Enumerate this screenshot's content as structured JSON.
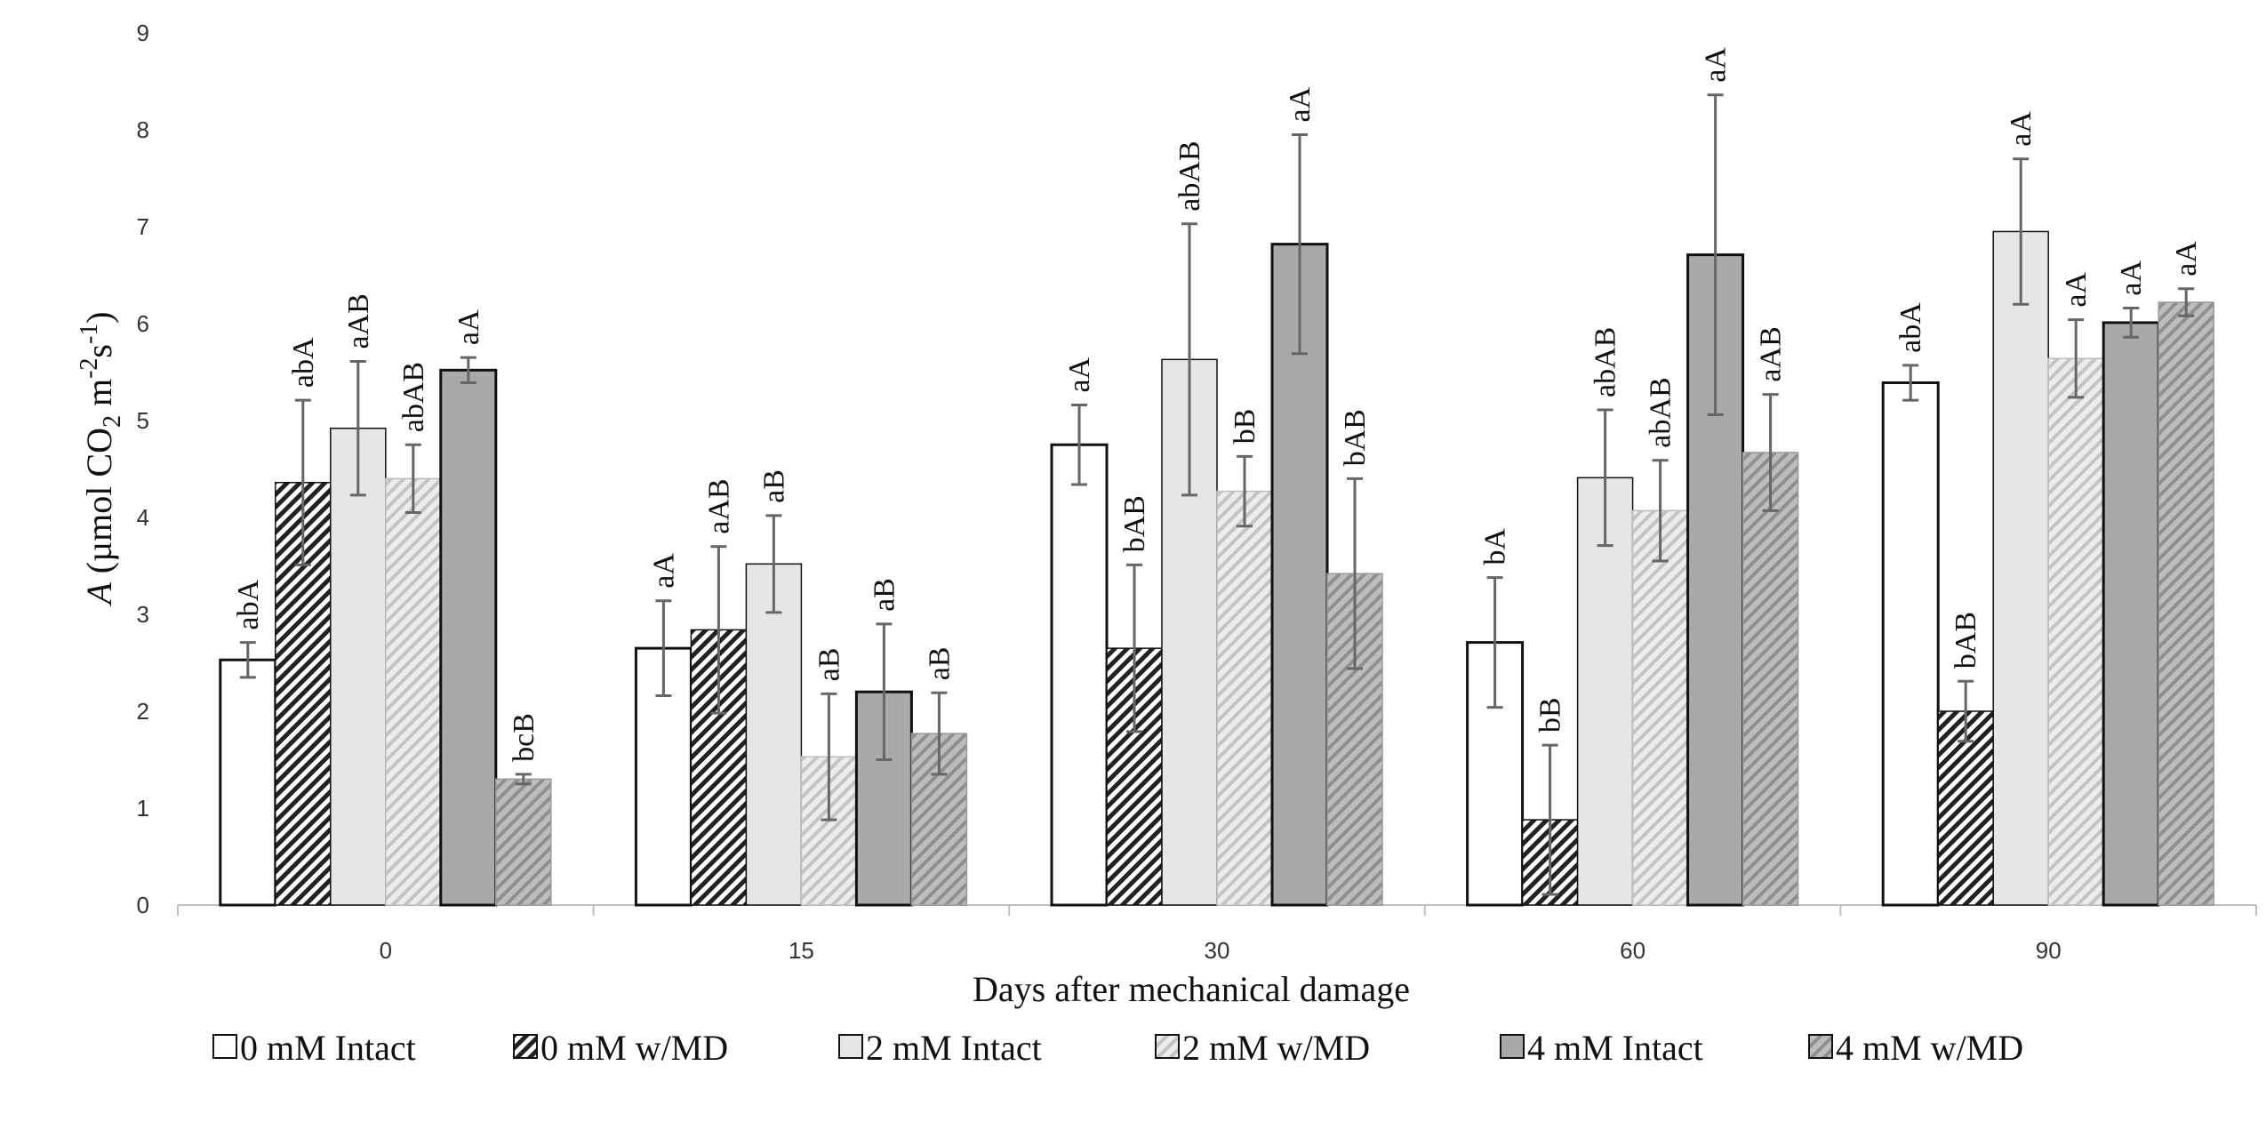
{
  "chart_data": {
    "type": "bar",
    "xlabel": "Days after mechanical damage",
    "ylabel": {
      "italic": "A",
      "pre": " (µmol CO",
      "sub": "2",
      "mid": " m",
      "sup1": "-2",
      "mid2": "s",
      "sup2": "-1",
      "post": ")"
    },
    "ylim": [
      0,
      9
    ],
    "yticks": [
      "0",
      "1",
      "2",
      "3",
      "4",
      "5",
      "6",
      "7",
      "8",
      "9"
    ],
    "categories": [
      "0",
      "15",
      "30",
      "60",
      "90"
    ],
    "legend_position": "bottom",
    "grid": false,
    "series": [
      {
        "name": "0 mM Intact",
        "style": "white",
        "values": [
          2.53,
          2.65,
          4.75,
          2.71,
          5.39
        ],
        "errors": [
          0.18,
          0.49,
          0.41,
          0.67,
          0.18
        ],
        "labels": [
          "abA",
          "aA",
          "aA",
          "bA",
          "abA"
        ]
      },
      {
        "name": "0 mM w/MD",
        "style": "hatch-dense",
        "values": [
          4.36,
          2.84,
          2.65,
          0.88,
          2.0
        ],
        "errors": [
          0.85,
          0.86,
          0.86,
          0.77,
          0.31
        ],
        "labels": [
          "abA",
          "aAB",
          "bAB",
          "bB",
          "bAB"
        ]
      },
      {
        "name": "2 mM Intact",
        "style": "lightgray",
        "values": [
          4.92,
          3.52,
          5.63,
          4.41,
          6.95
        ],
        "errors": [
          0.69,
          0.5,
          1.4,
          0.7,
          0.75
        ],
        "labels": [
          "aAB",
          "aB",
          "abAB",
          "abAB",
          "aA"
        ]
      },
      {
        "name": "2 mM w/MD",
        "style": "hatch-light",
        "values": [
          4.4,
          1.53,
          4.27,
          4.07,
          5.64
        ],
        "errors": [
          0.35,
          0.65,
          0.36,
          0.52,
          0.4
        ],
        "labels": [
          "abAB",
          "aB",
          "bB",
          "abAB",
          "aA"
        ]
      },
      {
        "name": "4 mM Intact",
        "style": "darkgray",
        "values": [
          5.52,
          2.2,
          6.82,
          6.71,
          6.01
        ],
        "errors": [
          0.13,
          0.7,
          1.13,
          1.65,
          0.15
        ],
        "labels": [
          "aA",
          "aB",
          "aA",
          "aA",
          "aA"
        ]
      },
      {
        "name": "4 mM w/MD",
        "style": "hatch-gray",
        "values": [
          1.3,
          1.77,
          3.42,
          4.67,
          6.22
        ],
        "errors": [
          0.05,
          0.42,
          0.98,
          0.6,
          0.14
        ],
        "labels": [
          "bcB",
          "aB",
          "bAB",
          "aAB",
          "aA"
        ]
      }
    ]
  }
}
